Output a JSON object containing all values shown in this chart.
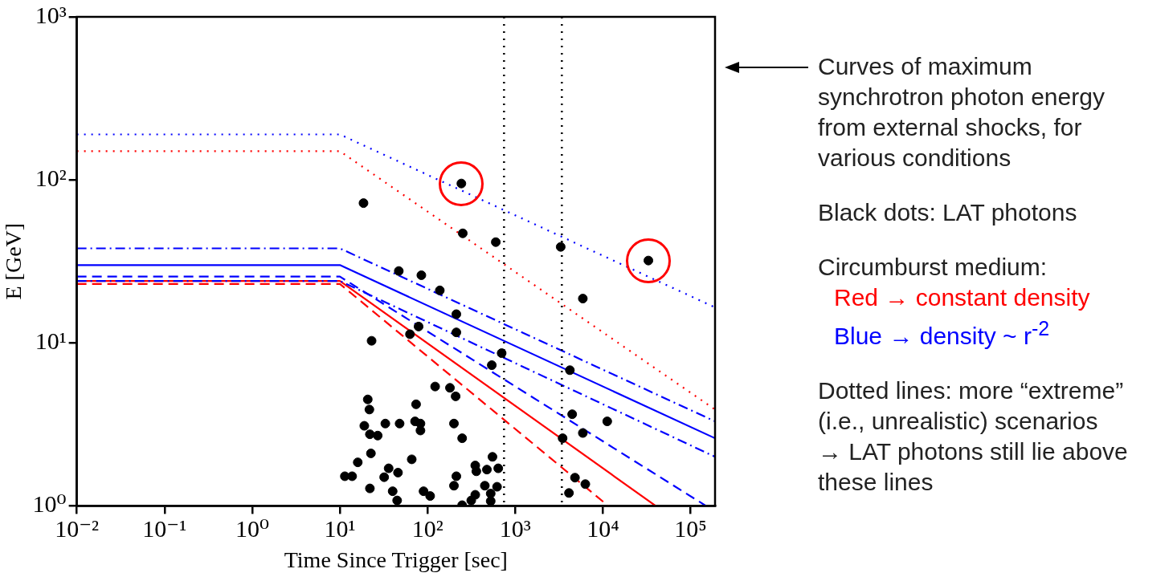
{
  "chart_data": {
    "type": "scatter",
    "xlabel": "Time Since Trigger [sec]",
    "ylabel": "E [GeV]",
    "log": "xy",
    "grid": false,
    "legend": false,
    "xlim": [
      0.01,
      190000
    ],
    "ylim": [
      1,
      1000
    ],
    "xticks": [
      {
        "value": 0.01,
        "label": "10⁻²"
      },
      {
        "value": 0.1,
        "label": "10⁻¹"
      },
      {
        "value": 1,
        "label": "10⁰"
      },
      {
        "value": 10,
        "label": "10¹"
      },
      {
        "value": 100,
        "label": "10²"
      },
      {
        "value": 1000,
        "label": "10³"
      },
      {
        "value": 10000,
        "label": "10⁴"
      },
      {
        "value": 100000,
        "label": "10⁵"
      }
    ],
    "yticks": [
      {
        "value": 1,
        "label": "10⁰"
      },
      {
        "value": 10,
        "label": "10¹"
      },
      {
        "value": 100,
        "label": "10²"
      },
      {
        "value": 1000,
        "label": "10³"
      }
    ],
    "ref_lines": [
      {
        "axis": "x",
        "value": 745,
        "color": "#000000",
        "line_style": "dotted"
      },
      {
        "axis": "x",
        "value": 3400,
        "color": "#000000",
        "line_style": "dotted"
      }
    ],
    "series": [
      {
        "type": "scatter",
        "color": "#000000",
        "marker": "circle",
        "x": [
          243,
          18.6,
          252,
          600,
          3300,
          33000,
          47,
          85,
          138,
          5900,
          213,
          79,
          213,
          63,
          23,
          700,
          540,
          4200,
          122,
          180,
          209,
          20.8,
          21.7,
          74,
          4460,
          11200,
          19,
          33,
          48,
          72,
          83,
          83,
          200,
          22,
          27,
          5900,
          248,
          3470,
          22.6,
          16,
          66,
          36,
          46,
          32,
          11.4,
          13.8,
          22,
          40,
          90,
          107,
          45,
          248,
          200,
          213,
          350,
          360,
          475,
          550,
          640,
          450,
          620,
          350,
          525,
          315,
          525,
          4800,
          6300,
          4100
        ],
        "values": [
          95,
          72,
          47,
          41.5,
          38.8,
          32,
          27.6,
          26,
          21,
          18.7,
          15,
          12.6,
          11.6,
          11.3,
          10.3,
          8.65,
          7.3,
          6.8,
          5.4,
          5.3,
          4.7,
          4.5,
          3.9,
          4.2,
          3.65,
          3.3,
          3.1,
          3.2,
          3.2,
          3.3,
          3.2,
          2.9,
          3.2,
          2.75,
          2.7,
          2.8,
          2.6,
          2.6,
          2.1,
          1.85,
          1.93,
          1.7,
          1.6,
          1.5,
          1.52,
          1.52,
          1.28,
          1.23,
          1.23,
          1.15,
          1.08,
          1.01,
          1.33,
          1.52,
          1.77,
          1.63,
          1.67,
          2.0,
          1.7,
          1.33,
          1.31,
          1.17,
          1.19,
          1.08,
          1.07,
          1.49,
          1.36,
          1.2
        ]
      },
      {
        "type": "line",
        "color": "#0000ff",
        "line_style": "dotted",
        "x": [
          0.01,
          10,
          190000
        ],
        "values": [
          190,
          190,
          16.5
        ]
      },
      {
        "type": "line",
        "color": "#ff0000",
        "line_style": "dotted",
        "x": [
          0.01,
          10,
          190000
        ],
        "values": [
          150,
          150,
          3.9
        ]
      },
      {
        "type": "line",
        "color": "#0000ff",
        "line_style": "dashdot",
        "x": [
          0.01,
          10,
          190000
        ],
        "values": [
          38,
          38,
          3.3
        ]
      },
      {
        "type": "line",
        "color": "#0000ff",
        "line_style": "solid",
        "x": [
          0.01,
          10,
          190000
        ],
        "values": [
          30,
          30,
          2.6
        ]
      },
      {
        "type": "line",
        "color": "#0000ff",
        "line_style": "dashed",
        "x": [
          0.01,
          10,
          150000
        ],
        "values": [
          25.5,
          25.5,
          1
        ]
      },
      {
        "type": "line",
        "color": "#0000ff",
        "line_style": "dashdot",
        "x": [
          0.01,
          10,
          190000
        ],
        "values": [
          24,
          24,
          2.0
        ]
      },
      {
        "type": "line",
        "color": "#ff0000",
        "line_style": "solid",
        "x": [
          0.01,
          10,
          40000
        ],
        "values": [
          24,
          24,
          1
        ]
      },
      {
        "type": "line",
        "color": "#ff0000",
        "line_style": "dashed",
        "x": [
          0.01,
          10,
          11500
        ],
        "values": [
          23,
          23,
          1
        ]
      }
    ],
    "annotations": [
      "Curves of maximum synchrotron photon energy from external shocks, for various conditions",
      "Black dots: LAT photons",
      "Circumburst medium:",
      "Red → constant density",
      "Blue → density ~ r$^{-2}$",
      "Dotted lines: more “extreme” (i.e., unrealistic) scenarios",
      "→ LAT photons still lie above these lines"
    ]
  }
}
